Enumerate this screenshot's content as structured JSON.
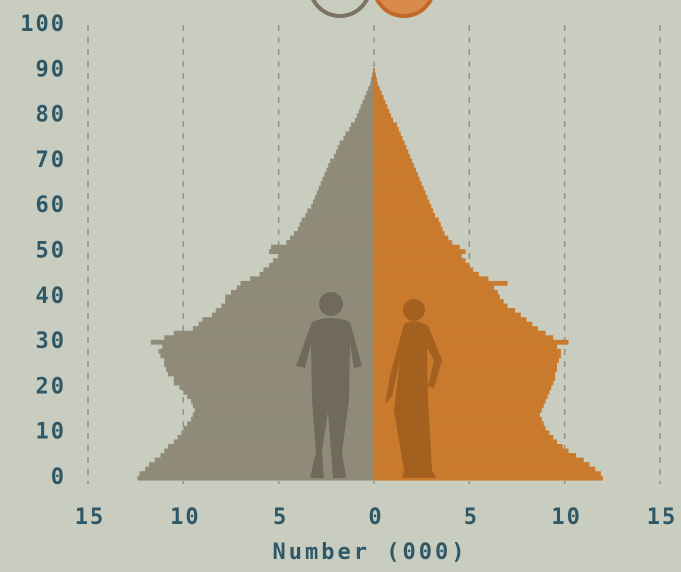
{
  "chart_data": {
    "type": "pyramid",
    "xlabel": "Number (000)",
    "xlim": [
      -15,
      15
    ],
    "xticks": [
      {
        "value": -15,
        "label": "15"
      },
      {
        "value": -10,
        "label": "10"
      },
      {
        "value": -5,
        "label": "5"
      },
      0,
      5,
      10,
      15
    ],
    "ylim": [
      0,
      100
    ],
    "yticks": [
      0,
      10,
      20,
      30,
      40,
      50,
      60,
      70,
      80,
      90,
      100
    ],
    "grid": true,
    "y": [
      0,
      1,
      2,
      3,
      4,
      5,
      6,
      7,
      8,
      9,
      10,
      11,
      12,
      13,
      14,
      15,
      16,
      17,
      18,
      19,
      20,
      21,
      22,
      23,
      24,
      25,
      26,
      27,
      28,
      29,
      30,
      31,
      32,
      33,
      34,
      35,
      36,
      37,
      38,
      39,
      40,
      41,
      42,
      43,
      44,
      45,
      46,
      47,
      48,
      49,
      50,
      51,
      52,
      53,
      54,
      55,
      56,
      57,
      58,
      59,
      60,
      61,
      62,
      63,
      64,
      65,
      66,
      67,
      68,
      69,
      70,
      71,
      72,
      73,
      74,
      75,
      76,
      77,
      78,
      79,
      80,
      81,
      82,
      83,
      84,
      85,
      86,
      87,
      88,
      89,
      90
    ],
    "series": [
      {
        "color": "#8f8b78",
        "values": [
          12.4,
          12.3,
          12.0,
          11.8,
          11.5,
          11.2,
          11.0,
          10.8,
          10.5,
          10.3,
          10.1,
          10.0,
          9.8,
          9.6,
          9.5,
          9.4,
          9.5,
          9.6,
          9.8,
          10.0,
          10.2,
          10.5,
          10.5,
          10.8,
          10.9,
          11.0,
          11.0,
          11.2,
          11.3,
          11.1,
          11.7,
          11.0,
          10.5,
          9.5,
          9.2,
          9.0,
          8.5,
          8.3,
          8.0,
          7.8,
          7.8,
          7.5,
          7.2,
          7.0,
          6.5,
          6.0,
          5.8,
          5.5,
          5.3,
          5.0,
          5.5,
          5.4,
          4.6,
          4.4,
          4.2,
          4.0,
          3.9,
          3.8,
          3.6,
          3.5,
          3.3,
          3.2,
          3.1,
          3.0,
          2.9,
          2.8,
          2.7,
          2.6,
          2.5,
          2.4,
          2.3,
          2.1,
          2.0,
          1.9,
          1.8,
          1.6,
          1.5,
          1.3,
          1.2,
          1.0,
          0.9,
          0.8,
          0.7,
          0.6,
          0.5,
          0.4,
          0.3,
          0.2,
          0.15,
          0.1,
          0.05
        ]
      },
      {
        "color": "#c97a2c",
        "values": [
          12.0,
          11.9,
          11.6,
          11.3,
          11.0,
          10.6,
          10.2,
          9.9,
          9.6,
          9.4,
          9.2,
          9.0,
          8.9,
          8.8,
          8.7,
          8.8,
          8.9,
          9.0,
          9.1,
          9.2,
          9.3,
          9.4,
          9.5,
          9.5,
          9.6,
          9.6,
          9.7,
          9.8,
          9.8,
          9.6,
          10.2,
          9.4,
          9.0,
          8.6,
          8.3,
          8.0,
          7.7,
          7.4,
          7.0,
          6.8,
          6.6,
          6.5,
          6.3,
          7.0,
          6.0,
          5.5,
          5.2,
          5.0,
          4.8,
          4.6,
          4.8,
          4.5,
          4.1,
          3.9,
          3.7,
          3.6,
          3.5,
          3.4,
          3.2,
          3.1,
          3.0,
          2.9,
          2.8,
          2.7,
          2.6,
          2.5,
          2.4,
          2.3,
          2.2,
          2.1,
          2.0,
          1.9,
          1.8,
          1.7,
          1.6,
          1.5,
          1.4,
          1.3,
          1.2,
          1.0,
          0.9,
          0.8,
          0.7,
          0.6,
          0.5,
          0.4,
          0.3,
          0.2,
          0.15,
          0.1,
          0.05
        ]
      }
    ]
  }
}
